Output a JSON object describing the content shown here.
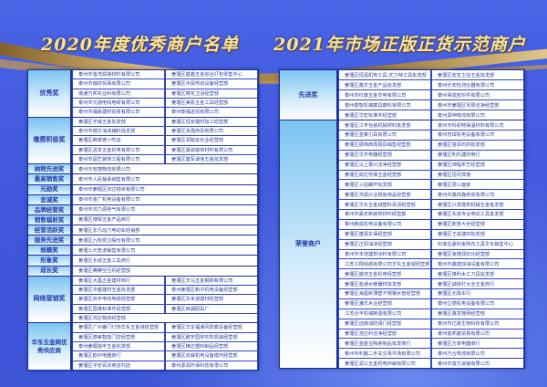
{
  "titles": {
    "left": "2020年度优秀商户名单",
    "right": "2021年市场正版正货示范商户"
  },
  "colors": {
    "background": "#4057dc",
    "label_text": "#1e3db0",
    "title_gold": "#f6e3a6",
    "cell_text": "#2c3f9c"
  },
  "left_table": [
    {
      "award": "优秀奖",
      "rows": [
        [
          "泰州市金湾焊接材料有限公司",
          "姜堰区盛鑫五金综合打包零售中心"
        ],
        [
          "泰州市瑞祥贸易有限公司",
          "姜堰区中润传动设备经营部"
        ],
        [
          "南通万邦实业科有限公司",
          "姜堰区樱花卫浴经营部"
        ],
        [
          "泰州市元通电线电缆有限公司",
          "姜堰区美凯五金工具经营部"
        ],
        [
          "泰州市福晨建材贸易有限公司",
          "泰州泰福进贸有限公司"
        ]
      ]
    },
    {
      "award": "缴费积极奖",
      "rows": [
        [
          "姜堰区宇威五金批发部",
          "姜堰区恒安建材加工经营部"
        ],
        [
          "泰州市瑞华油漆辅料批发部",
          "姜堰区永强商贸有限公司"
        ],
        [
          "姜堰区麻婆婆小吃店",
          "姜堰区润铭友石业经营部"
        ],
        [
          "姜堰区进发五金机电有限公司",
          "姜堰区晨诚装饰材料有限公司"
        ],
        [
          "泰州市固艺装饰工程有限公司",
          "姜堰区建军诚信五金批发部"
        ]
      ]
    },
    {
      "award": "纳税先进奖",
      "rows": [
        [
          "泰州市安捷物流有限公司"
        ]
      ]
    },
    {
      "award": "最高销售奖",
      "rows": [
        [
          "泰州市人民轴承销售有限公司"
        ]
      ]
    },
    {
      "award": "元勋奖",
      "rows": [
        [
          "泰州市姜堰区双达物资有限公司"
        ]
      ]
    },
    {
      "award": "忠诚奖",
      "rows": [
        [
          "泰州市金广机电设备有限公司"
        ]
      ]
    },
    {
      "award": "品牌经营奖",
      "rows": [
        [
          "泰州市鸿力源电气有限公司"
        ]
      ]
    },
    {
      "award": "销售辐射奖",
      "rows": [
        [
          "姜堰区博琛五金产品商行"
        ]
      ]
    },
    {
      "award": "经营活跃奖",
      "rows": [
        [
          "姜堰区非凡动力电动车经销部"
        ]
      ]
    },
    {
      "award": "服务先进奖",
      "rows": [
        [
          "姜堰区九牧厨卫股份有限公司"
        ]
      ]
    },
    {
      "award": "规模奖",
      "rows": [
        [
          "姜堰公元管道销售有限公司"
        ]
      ]
    },
    {
      "award": "形象奖",
      "rows": [
        [
          "姜堰区长城五金工具商行"
        ]
      ]
    },
    {
      "award": "成长奖",
      "rows": [
        [
          "姜堰区腾腾空压机经营部"
        ]
      ]
    },
    {
      "award": "网络营销奖",
      "rows": [
        [
          "姜堰区大昌五金建材商行",
          "姜堰区天马五金钢网有限公司"
        ],
        [
          "姜堰区中盛建材五金批发部",
          "泰州姜堰区新沪机电设备经营部"
        ],
        [
          "姜堰区双丰电线电缆经营部",
          "姜堰区东米诺建材经营部"
        ],
        [
          "姜堰区国港标准件经营部",
          "姜堰区西湖厨具厂"
        ],
        [
          "姜堰区鸿达物资经营部"
        ]
      ]
    },
    {
      "award": "华东五金网优秀供应商",
      "rows": [
        [
          "姜堰区广州番门灯饰华东五金城经营部",
          "姜堰区华龙福通风防腐设备经营部"
        ],
        [
          "姜堰区德美智能门控经营部",
          "姜堰区鹏宇园林农牧机械经营部"
        ],
        [
          "泰州姜堰独丰五金批发部",
          "姜堰区精达塑料制品经营部"
        ],
        [
          "姜堰区欧护电器商行",
          "姜堰区双威机电设备模剂经营部"
        ],
        [
          "姜堰区平安百货商店村店",
          "泰州源润环保科技有限公司"
        ]
      ]
    }
  ],
  "right_table": [
    {
      "award": "先进奖",
      "rows": [
        [
          "姜堰区恒润机电工具,优力特工具批发部",
          "姜堰区宏龙卫浴五金批发部"
        ],
        [
          "姜堰区鑫华五金产品批发部",
          "泰州长安检测仪器有限公司"
        ],
        [
          "泰州市红旗五金交电有限公司",
          "泰州易成密封件有限公司"
        ],
        [
          "泰州泰智机械磨具磨料有限公司",
          "泰州市姜堰区琴辰洁净经营部"
        ],
        [
          "姜堰区华宏标准件经营部",
          "泰州源坤物流有限公司"
        ]
      ]
    },
    {
      "award": "荣誉商户",
      "rows": [
        [
          "姜堰区江丰包装机械材料批发部",
          "泰州市科耐特保温材料有限公司"
        ],
        [
          "姜堰区金泰刃具有限公司",
          "泰州苏焊机电设备有限公司"
        ],
        [
          "姜堰区振档商周厨具销售经营部",
          "姜堰区富泽石材批发部"
        ],
        [
          "姜堰区华杰电器经营部",
          "姜堰区利氏建材商行"
        ],
        [
          "姜堰区马上惠兴洁净经营部",
          "姜堰区锦程布艺经营部"
        ],
        [
          "姜堰区成达劳保五金经营部",
          "姜堰区恒讯宾馆"
        ],
        [
          "姜堰区三拍螺杆批发部",
          "姜堰区周三面家"
        ],
        [
          "姜堰区鸿源兴业厨房用品经营部",
          "泰州市鑫祥鑫商贸有限公司"
        ],
        [
          "姜堰区华东五金城塑料百货经营部",
          "姜堰区兴发隆筑机械五金批发部"
        ],
        [
          "泰州市嘉天新装饰材料经营部",
          "姜堰区东成专业电动工具批发部"
        ],
        [
          "泰州鹏成机电设备有限公司",
          "姜堰区乾誉大全经营部"
        ],
        [
          "姜堰区蓬源东保经营部",
          "姜堰区王成建材批发部"
        ],
        [
          "姜堰区正阳油漆经营部",
          "石家庄嘉利金刚石工具华东销售中心"
        ],
        [
          "泰州市本茂建筑涂料有限公司",
          "姜堰区争捷润石化经营部"
        ],
        [
          "江苏江翔线缆有限公司华东五金城经营部",
          "泰州市鑫捷加油设备有限公司"
        ],
        [
          "姜堰区盛茂五金机电经营部",
          "姜堰区锋利木工刀具批发部"
        ],
        [
          "姜堰区金通水暖器材批发部",
          "姜堰区诚信钉大全五金商行"
        ],
        [
          "姜堰区海昌新薄壁不锈钢水管经营部",
          "姜堰区北极车行"
        ],
        [
          "姜堰区潘氏木业经营部",
          "泰州立德机电设备有限公司"
        ],
        [
          "江苏合丰机械制造有限公司",
          "姜堰区鑫发隆网经营部"
        ],
        [
          "姜堰区远南消防阀门经营部",
          "泰州市亿晨生物科技有限公司"
        ],
        [
          "姜堰区浩达利洁净经营部",
          "泰州富邦鑫贸易有限公司"
        ],
        [
          "姜堰区金盛宝陶瓷制品批发商行",
          "姜堰区万家电器商行"
        ],
        [
          "泰州市利鑫二手车交易市场有限公司",
          "泰州万合物流有限公司"
        ],
        [
          "姜堰区润工五金机电仲裁有限公司",
          "泰州市富方进输有限公司"
        ]
      ]
    }
  ]
}
